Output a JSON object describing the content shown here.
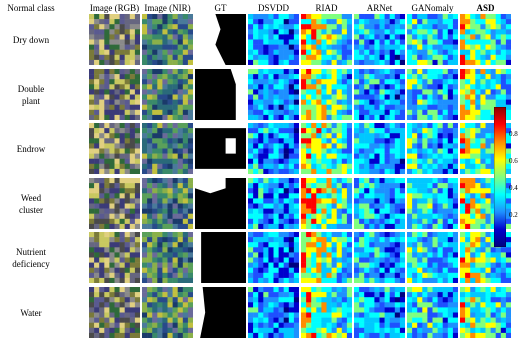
{
  "figure": {
    "column_headers": [
      "Normal class",
      "Image (RGB)",
      "Image (NIR)",
      "GT",
      "DSVDD",
      "RIAD",
      "ARNet",
      "GANomaly",
      "ASD"
    ],
    "rows": [
      {
        "lines": [
          "Dry down"
        ]
      },
      {
        "lines": [
          "Double",
          "plant"
        ]
      },
      {
        "lines": [
          "Endrow"
        ]
      },
      {
        "lines": [
          "Weed",
          "cluster"
        ]
      },
      {
        "lines": [
          "Nutrient",
          "deficiency"
        ]
      },
      {
        "lines": [
          "Water"
        ]
      }
    ],
    "colorbar": {
      "ticks": [
        "0.8",
        "0.6",
        "0.4",
        "0.2"
      ],
      "colors": [
        "#8b0000",
        "#ff0000",
        "#ff8c00",
        "#ffff00",
        "#7fff7f",
        "#00ffff",
        "#1e90ff",
        "#0000cd",
        "#00007f"
      ]
    },
    "palettes": {
      "rgb": [
        "#3b3b78",
        "#5a5a90",
        "#2f6a3a",
        "#8a8a8a",
        "#7a7a3a",
        "#c8c860",
        "#e0d080",
        "#666680",
        "#4a4a4a"
      ],
      "nir": [
        "#1a3a6a",
        "#2a6a7a",
        "#3a8a6a",
        "#5aa05a",
        "#8ab04a",
        "#c0c040",
        "#284a8a",
        "#4a7a9a",
        "#6a6a9a"
      ],
      "heat": [
        "#00007f",
        "#0000cd",
        "#1e50ff",
        "#1e90ff",
        "#00c8ff",
        "#00ffff",
        "#7fff7f",
        "#ffff00",
        "#ff8c00",
        "#ff0000"
      ]
    }
  }
}
